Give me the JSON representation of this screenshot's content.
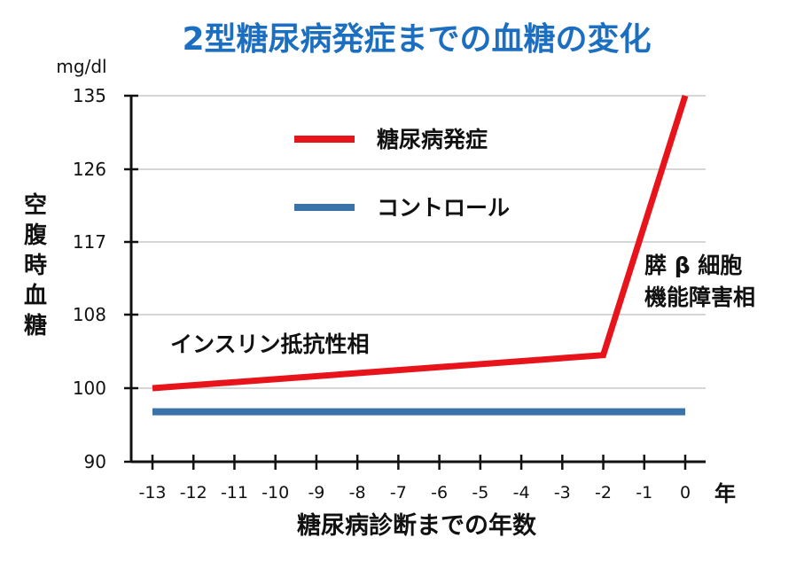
{
  "chart_data": {
    "type": "line",
    "title": "2型糖尿病発症までの血糖の変化",
    "ylabel": "空腹時血糖",
    "yunit": "mg/dl",
    "xlabel": "糖尿病診断までの年数",
    "xunit": "年",
    "ylim": [
      90,
      135
    ],
    "yticks": [
      "90",
      "100",
      "108",
      "117",
      "126",
      "135"
    ],
    "ytick_values": [
      90,
      100,
      108,
      117,
      126,
      135
    ],
    "grid_y_values": [
      100,
      108,
      117,
      126,
      135
    ],
    "xlim": [
      -13,
      0
    ],
    "xticks": [
      "-13",
      "-12",
      "-11",
      "-10",
      "-9",
      "-8",
      "-7",
      "-6",
      "-5",
      "-4",
      "-3",
      "-2",
      "-1",
      "0"
    ],
    "xtick_values": [
      -13,
      -12,
      -11,
      -10,
      -9,
      -8,
      -7,
      -6,
      -5,
      -4,
      -3,
      -2,
      -1,
      0
    ],
    "grid": "horizontal",
    "legend_position": "top-center",
    "series": [
      {
        "name": "糖尿病発症",
        "color": "#e8141b",
        "x": [
          -13,
          -2,
          0
        ],
        "y": [
          100,
          103.6,
          135
        ]
      },
      {
        "name": "コントロール",
        "color": "#3a73a8",
        "x": [
          -13,
          0
        ],
        "y": [
          96.8,
          96.8
        ]
      }
    ],
    "annotations": [
      {
        "text": "インスリン抵抗性相"
      },
      {
        "lines": [
          "膵 β 細胞",
          "機能障害相"
        ]
      }
    ]
  }
}
